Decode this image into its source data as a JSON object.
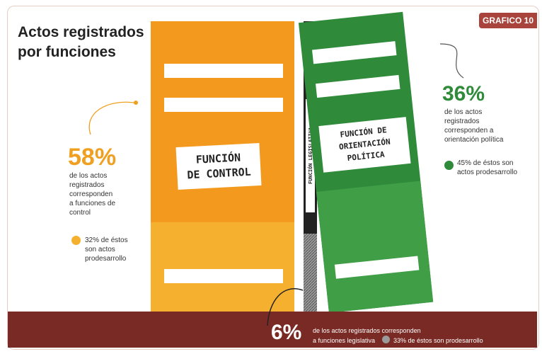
{
  "title_line1": "Actos registrados",
  "title_line2": "por funciones",
  "badge": "GRAFICO 10",
  "chart_data": {
    "type": "bar",
    "categories": [
      "Función de control",
      "Función legislativa",
      "Función de orientación política"
    ],
    "series": [
      {
        "values": [
          58,
          6,
          36
        ]
      }
    ],
    "prodesarrollo": [
      32,
      33,
      45
    ],
    "ylim": [
      0,
      100
    ]
  },
  "colors": {
    "control": "#f39a1e",
    "control_light": "#f6b02f",
    "legislativa": "#222222",
    "orientacion": "#2f8a3a",
    "orientacion_light": "#3f9e46",
    "ground": "#7a2a24"
  },
  "labels": {
    "control_label1": "FUNCIÓN",
    "control_label2": "DE CONTROL",
    "legislativa_label": "FUNCIÓN LEGISLATIVA",
    "orientacion_label1": "FUNCIÓN DE",
    "orientacion_label2": "ORIENTACIÓN",
    "orientacion_label3": "POLÍTICA"
  },
  "annotations": {
    "control_pct": "58%",
    "control_text": "de los actos\nregistrados\ncorresponden\na funciones de\ncontrol",
    "control_sub": "32% de éstos\nson actos\nprodesarrollo",
    "orientacion_pct": "36%",
    "orientacion_text": "de los actos\nregistrados\ncorresponden a\norientación política",
    "orientacion_sub": "45% de éstos son\nactos prodesarrollo",
    "legislativa_pct": "6%",
    "legislativa_text1": "de los actos  registrados corresponden",
    "legislativa_text2": "a funciones legislativa",
    "legislativa_sub": "33% de éstos son prodesarrollo"
  }
}
